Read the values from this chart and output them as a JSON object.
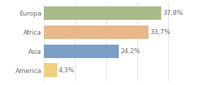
{
  "categories": [
    "Europa",
    "Africa",
    "Asia",
    "America"
  ],
  "values": [
    37.8,
    33.7,
    24.2,
    4.3
  ],
  "labels": [
    "37,8%",
    "33,7%",
    "24,2%",
    "4,3%"
  ],
  "bar_colors": [
    "#a8bc8a",
    "#e8b88a",
    "#7b9fc4",
    "#f0d080"
  ],
  "background_color": "#ffffff",
  "xlim": [
    0,
    42
  ],
  "bar_height": 0.72,
  "label_fontsize": 6.5,
  "category_fontsize": 6.5,
  "text_color": "#666666",
  "grid_color": "#dddddd",
  "grid_xticks": [
    0,
    10,
    20,
    30,
    40
  ]
}
